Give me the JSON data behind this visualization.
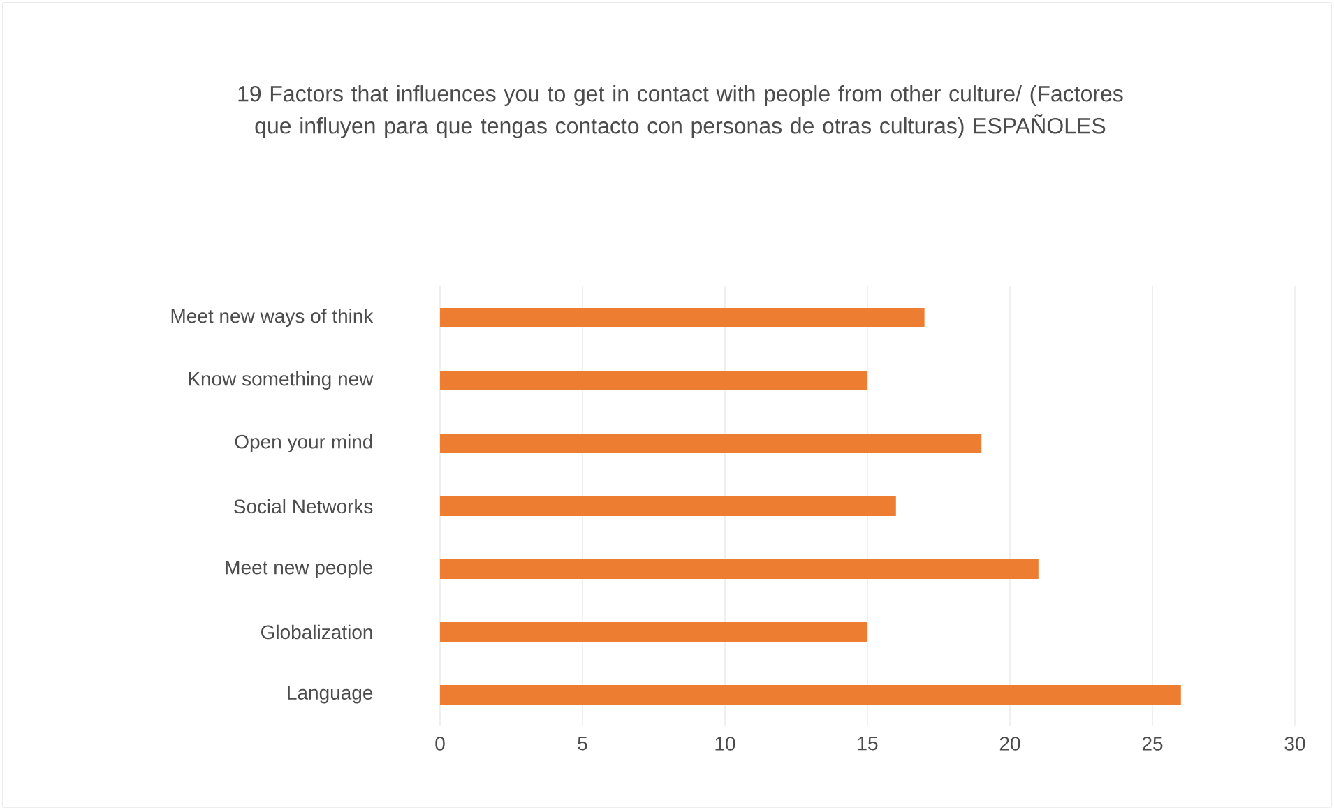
{
  "chart_data": {
    "type": "bar",
    "orientation": "horizontal",
    "title": "19 Factors that influences you to get  in contact with people from other culture/ (Factores que influyen para que tengas contacto con personas de otras culturas) ESPAÑOLES",
    "categories": [
      "Meet new ways of think",
      "Know something new",
      "Open your mind",
      "Social Networks",
      "Meet new people",
      "Globalization",
      "Language"
    ],
    "values": [
      17,
      15,
      19,
      16,
      21,
      15,
      26
    ],
    "color": "#ed7d31",
    "xlim": [
      0,
      30
    ],
    "xticks": [
      0,
      5,
      10,
      15,
      20,
      25,
      30
    ],
    "grid": "x"
  }
}
